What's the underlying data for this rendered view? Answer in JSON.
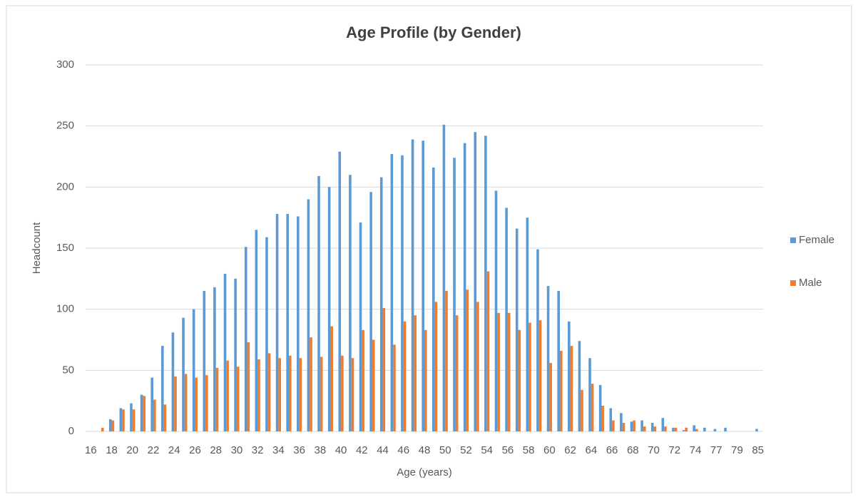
{
  "chart_data": {
    "type": "bar",
    "title": "Age Profile (by Gender)",
    "x_label": "Age (years)",
    "y_label": "Headcount",
    "categories": [
      "16",
      null,
      "18",
      null,
      "20",
      null,
      "22",
      null,
      "24",
      null,
      "26",
      null,
      "28",
      null,
      "30",
      null,
      "32",
      null,
      "34",
      null,
      "36",
      null,
      "38",
      null,
      "40",
      null,
      "42",
      null,
      "44",
      null,
      "46",
      null,
      "48",
      null,
      "50",
      null,
      "52",
      null,
      "54",
      null,
      "56",
      null,
      "58",
      null,
      "60",
      null,
      "62",
      null,
      "64",
      null,
      "66",
      null,
      "68",
      null,
      "70",
      null,
      "72",
      null,
      "74",
      null,
      "77",
      null,
      "79",
      null,
      "85"
    ],
    "series": [
      {
        "name": "Female",
        "color": "#5b9bd5",
        "values": [
          0,
          0,
          10,
          19,
          23,
          30,
          44,
          70,
          81,
          93,
          100,
          115,
          118,
          129,
          125,
          151,
          165,
          159,
          178,
          178,
          176,
          190,
          209,
          200,
          229,
          210,
          171,
          196,
          208,
          227,
          226,
          239,
          238,
          216,
          251,
          224,
          236,
          245,
          242,
          197,
          183,
          166,
          175,
          149,
          119,
          115,
          90,
          74,
          60,
          38,
          19,
          15,
          8,
          9,
          7,
          11,
          3,
          1,
          5,
          3,
          2,
          3,
          0,
          0,
          2
        ]
      },
      {
        "name": "Male",
        "color": "#ed7d31",
        "values": [
          0,
          3,
          9,
          18,
          18,
          29,
          26,
          22,
          45,
          47,
          44,
          46,
          52,
          58,
          53,
          73,
          59,
          64,
          60,
          62,
          60,
          77,
          61,
          86,
          62,
          60,
          83,
          75,
          101,
          71,
          90,
          95,
          83,
          106,
          115,
          95,
          116,
          106,
          131,
          97,
          97,
          83,
          89,
          91,
          56,
          66,
          70,
          34,
          39,
          21,
          9,
          7,
          9,
          4,
          4,
          4,
          3,
          3,
          2,
          0,
          0,
          0,
          0,
          0,
          0
        ]
      }
    ],
    "ylim": [
      0,
      300
    ],
    "yticks": [
      0,
      50,
      100,
      150,
      200,
      250,
      300
    ],
    "grid": true,
    "legend": "right"
  }
}
